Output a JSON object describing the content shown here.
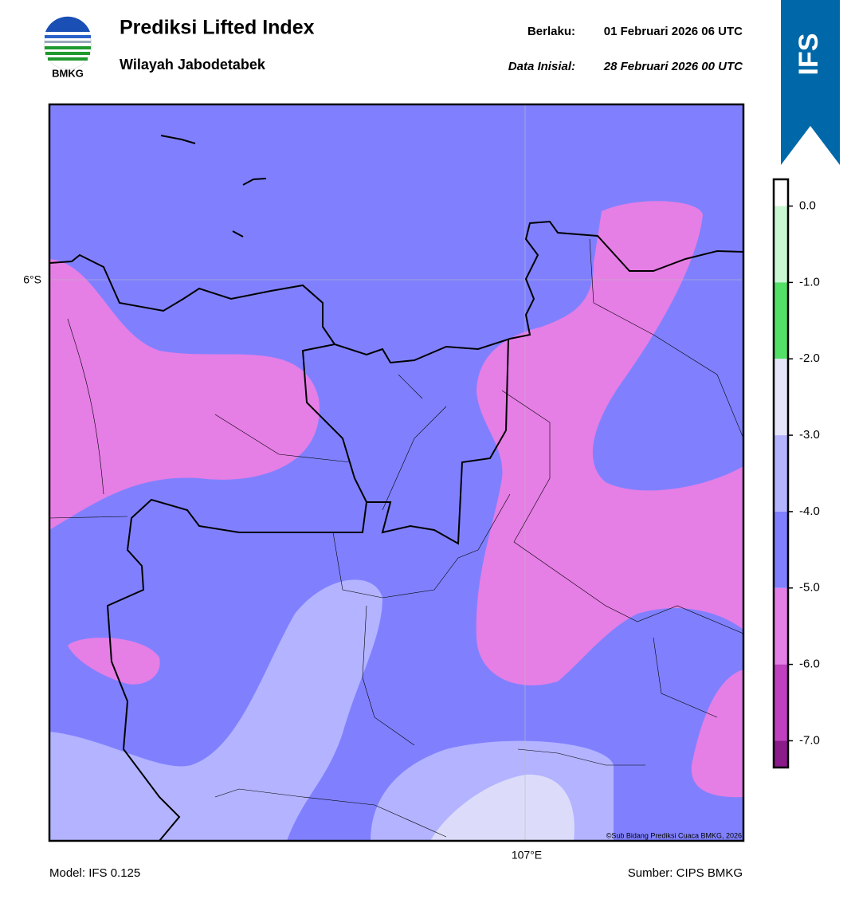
{
  "header": {
    "logo_text": "BMKG",
    "title": "Prediksi Lifted Index",
    "subtitle": "Wilayah Jabodetabek",
    "valid_label": "Berlaku:",
    "valid_time": "01 Februari 2026 06 UTC",
    "init_label": "Data Inisial:",
    "init_time": "28 Februari 2026 00 UTC",
    "badge": "IFS"
  },
  "map": {
    "lat_label": "6°S",
    "lon_label": "107°E",
    "credit": "©Sub Bidang Prediksi Cuaca BMKG, 2026"
  },
  "colorbar": {
    "lim": [
      -7.35,
      0.35
    ],
    "ticks": [
      {
        "value": 0,
        "label": "0.0"
      },
      {
        "value": -1,
        "label": "-1.0"
      },
      {
        "value": -2,
        "label": "-2.0"
      },
      {
        "value": -3,
        "label": "-3.0"
      },
      {
        "value": -4,
        "label": "-4.0"
      },
      {
        "value": -5,
        "label": "-5.0"
      },
      {
        "value": -6,
        "label": "-6.0"
      },
      {
        "value": -7,
        "label": "-7.0"
      }
    ],
    "colors": [
      "#ffffff",
      "#c9f7d2",
      "#52e066",
      "#e6e6fa",
      "#b3b3ff",
      "#8080ff",
      "#e57ee5",
      "#c040c0",
      "#8b1a8b"
    ]
  },
  "footer": {
    "model": "Model: IFS 0.125",
    "source": "Sumber: CIPS BMKG"
  }
}
